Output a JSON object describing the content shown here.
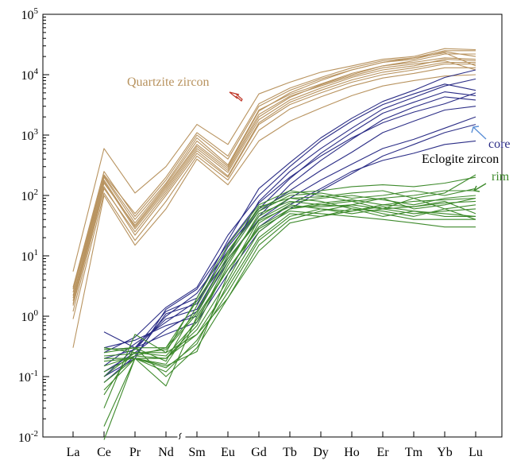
{
  "chart_data": {
    "type": "line",
    "scale": "log",
    "categories": [
      "La",
      "Ce",
      "Pr",
      "Nd",
      "Sm",
      "Eu",
      "Gd",
      "Tb",
      "Dy",
      "Ho",
      "Er",
      "Tm",
      "Yb",
      "Lu"
    ],
    "y_ticks": [
      {
        "base": "10",
        "exp": "-2"
      },
      {
        "base": "10",
        "exp": "-1"
      },
      {
        "base": "10",
        "exp": "0"
      },
      {
        "base": "10",
        "exp": "1"
      },
      {
        "base": "10",
        "exp": "2"
      },
      {
        "base": "10",
        "exp": "3"
      },
      {
        "base": "10",
        "exp": "4"
      },
      {
        "base": "10",
        "exp": "5"
      }
    ],
    "ylim": [
      0.01,
      100000
    ],
    "grid": false,
    "axis_break_between": [
      "Nd",
      "Sm"
    ],
    "annotations": {
      "quartzite": "Quartzite zircon",
      "core": "core",
      "eclogite": "Eclogite zircon",
      "rim": "rim"
    },
    "colors": {
      "quartzite": "#b8935f",
      "core": "#2b2d86",
      "rim": "#3e8a2c",
      "quartzite_arrow": "#c0392b",
      "core_arrow": "#5b8fd6",
      "rim_arrow": "#3e8a2c"
    },
    "groups": [
      {
        "name": "Quartzite zircon",
        "color_key": "quartzite",
        "series": [
          {
            "values": [
              2.5,
              200,
              35,
              150,
              800,
              300,
              2500,
              5000,
              8000,
              12000,
              16000,
              19000,
              25000,
              25000
            ]
          },
          {
            "values": [
              1.8,
              180,
              30,
              130,
              650,
              260,
              2000,
              4200,
              6800,
              10000,
              14000,
              17000,
              22000,
              22000
            ]
          },
          {
            "values": [
              5.5,
              600,
              110,
              300,
              1500,
              700,
              4800,
              7500,
              11000,
              14000,
              18000,
              20000,
              27000,
              26000
            ]
          },
          {
            "values": [
              3,
              250,
              45,
              180,
              1000,
              400,
              3000,
              5500,
              8500,
              12000,
              16000,
              18000,
              24000,
              20000
            ]
          },
          {
            "values": [
              2.2,
              170,
              28,
              120,
              600,
              240,
              1800,
              3800,
              6000,
              9000,
              12000,
              14000,
              18000,
              17000
            ]
          },
          {
            "values": [
              1.5,
              140,
              22,
              100,
              500,
              200,
              1500,
              3200,
              5000,
              7500,
              10000,
              12000,
              15000,
              15000
            ]
          },
          {
            "values": [
              0.9,
              110,
              18,
              80,
              450,
              180,
              1200,
              2700,
              4300,
              6500,
              8800,
              10500,
              13000,
              13000
            ]
          },
          {
            "values": [
              2,
              210,
              40,
              160,
              900,
              320,
              2600,
              4700,
              7000,
              10500,
              14000,
              16000,
              19000,
              18000
            ]
          },
          {
            "values": [
              1.2,
              130,
              25,
              110,
              550,
              210,
              1600,
              3500,
              5500,
              8200,
              11000,
              13000,
              16000,
              16000
            ]
          },
          {
            "values": [
              0.3,
              100,
              15,
              60,
              400,
              150,
              800,
              1700,
              2800,
              4500,
              6500,
              8000,
              9500,
              10000
            ]
          },
          {
            "values": [
              2.8,
              220,
              50,
              200,
              1100,
              450,
              3300,
              6000,
              9000,
              13000,
              17000,
              19000,
              23000,
              14000
            ]
          },
          {
            "values": [
              1.6,
              160,
              32,
              140,
              700,
              280,
              2200,
              4400,
              6500,
              9500,
              13000,
              15000,
              17000,
              12000
            ]
          }
        ]
      },
      {
        "name": "core",
        "color_key": "core",
        "series": [
          {
            "values": [
              null,
              0.1,
              0.3,
              1.2,
              2,
              18,
              130,
              350,
              900,
              1900,
              3600,
              5500,
              9000,
              12000
            ]
          },
          {
            "values": [
              null,
              0.55,
              0.3,
              0.9,
              1.3,
              10,
              80,
              250,
              600,
              1300,
              2700,
              4200,
              6500,
              8500
            ]
          },
          {
            "values": [
              null,
              0.25,
              0.45,
              1.4,
              3,
              22,
              100,
              300,
              800,
              1700,
              3200,
              4800,
              7000,
              5500
            ]
          },
          {
            "values": [
              null,
              0.08,
              0.22,
              1.1,
              1.6,
              14,
              60,
              190,
              500,
              1100,
              2300,
              3500,
              5200,
              4500
            ]
          },
          {
            "values": [
              null,
              0.12,
              0.25,
              0.6,
              1.2,
              8,
              45,
              150,
              380,
              850,
              1800,
              2900,
              4300,
              3800
            ]
          },
          {
            "values": [
              null,
              0.2,
              0.28,
              1.0,
              2.4,
              12,
              55,
              120,
              260,
              520,
              1100,
              1700,
              2600,
              3000
            ]
          },
          {
            "values": [
              null,
              0.15,
              0.35,
              0.8,
              1.8,
              9,
              40,
              90,
              180,
              330,
              600,
              850,
              1300,
              2000
            ]
          },
          {
            "values": [
              null,
              0.3,
              0.4,
              0.7,
              1.0,
              6,
              30,
              70,
              130,
              250,
              380,
              500,
              700,
              800
            ]
          },
          {
            "values": [
              null,
              0.1,
              0.2,
              1.3,
              2.8,
              16,
              75,
              200,
              450,
              900,
              1600,
              2400,
              3300,
              5000
            ]
          },
          {
            "values": [
              null,
              0.28,
              0.3,
              0.5,
              0.8,
              5,
              25,
              60,
              120,
              230,
              450,
              700,
              1100,
              1500
            ]
          }
        ]
      },
      {
        "name": "rim",
        "color_key": "rim",
        "series": [
          {
            "values": [
              null,
              0.015,
              0.2,
              0.2,
              0.6,
              4,
              35,
              70,
              60,
              55,
              70,
              65,
              80,
              50
            ]
          },
          {
            "values": [
              null,
              0.009,
              0.2,
              0.07,
              1.0,
              6,
              30,
              60,
              70,
              80,
              60,
              90,
              60,
              70
            ]
          },
          {
            "values": [
              null,
              0.03,
              0.5,
              0.25,
              0.5,
              3,
              20,
              50,
              45,
              60,
              55,
              45,
              60,
              40
            ]
          },
          {
            "values": [
              null,
              0.05,
              0.3,
              0.1,
              0.3,
              2,
              15,
              40,
              55,
              70,
              90,
              60,
              70,
              90
            ]
          },
          {
            "values": [
              null,
              0.1,
              0.25,
              0.22,
              0.8,
              8,
              45,
              90,
              80,
              60,
              45,
              55,
              45,
              45
            ]
          },
          {
            "values": [
              null,
              0.2,
              0.2,
              0.15,
              0.26,
              5,
              40,
              75,
              90,
              100,
              85,
              70,
              90,
              100
            ]
          },
          {
            "values": [
              null,
              0.15,
              0.22,
              0.3,
              1.2,
              10,
              55,
              100,
              110,
              90,
              100,
              120,
              100,
              130
            ]
          },
          {
            "values": [
              null,
              0.08,
              0.2,
              0.12,
              0.4,
              2.5,
              18,
              45,
              60,
              50,
              60,
              50,
              55,
              60
            ]
          },
          {
            "values": [
              null,
              0.25,
              0.3,
              0.18,
              1.5,
              12,
              60,
              110,
              120,
              140,
              150,
              140,
              160,
              200
            ]
          },
          {
            "values": [
              null,
              0.12,
              0.22,
              0.2,
              0.7,
              7,
              50,
              80,
              70,
              65,
              50,
              40,
              40,
              40
            ]
          },
          {
            "values": [
              null,
              0.3,
              0.25,
              0.25,
              2.0,
              15,
              70,
              120,
              100,
              80,
              90,
              100,
              120,
              120
            ]
          },
          {
            "values": [
              null,
              0.18,
              0.2,
              0.16,
              0.9,
              6,
              28,
              55,
              50,
              45,
              40,
              35,
              30,
              30
            ]
          },
          {
            "values": [
              null,
              0.22,
              0.24,
              0.28,
              1.1,
              9,
              38,
              65,
              65,
              70,
              60,
              65,
              75,
              80
            ]
          },
          {
            "values": [
              null,
              0.06,
              0.2,
              0.14,
              0.35,
              3.5,
              25,
              60,
              75,
              85,
              70,
              80,
              85,
              90
            ]
          },
          {
            "values": [
              null,
              0.28,
              0.3,
              0.3,
              1.8,
              11,
              65,
              90,
              95,
              110,
              120,
              90,
              110,
              220
            ]
          },
          {
            "values": [
              null,
              0.2,
              0.2,
              0.2,
              0.5,
              2,
              12,
              35,
              45,
              55,
              65,
              55,
              50,
              45
            ]
          }
        ]
      }
    ]
  }
}
